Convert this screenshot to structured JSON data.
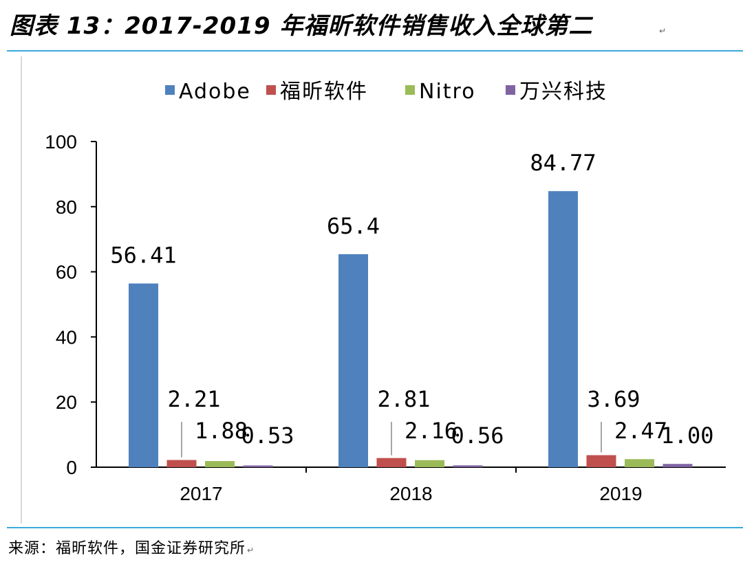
{
  "title": "图表 13：2017-2019 年福昕软件销售收入全球第二",
  "source": "来源：福昕软件，国金证券研究所",
  "chart_data": {
    "type": "bar",
    "categories": [
      "2017",
      "2018",
      "2019"
    ],
    "series": [
      {
        "name": "Adobe",
        "color": "#4f81bd",
        "values": [
          56.41,
          65.4,
          84.77
        ],
        "labels": [
          "56.41",
          "65.4",
          "84.77"
        ]
      },
      {
        "name": "福昕软件",
        "color": "#c0504d",
        "values": [
          2.21,
          2.81,
          3.69
        ],
        "labels": [
          "2.21",
          "2.81",
          "3.69"
        ]
      },
      {
        "name": "Nitro",
        "color": "#9bbb59",
        "values": [
          1.88,
          2.16,
          2.47
        ],
        "labels": [
          "1.88",
          "2.16",
          "2.47"
        ]
      },
      {
        "name": "万兴科技",
        "color": "#8064a2",
        "values": [
          0.53,
          0.56,
          1.0
        ],
        "labels": [
          "0.53",
          "0.56",
          "1.00"
        ]
      }
    ],
    "ylim": [
      0,
      100
    ],
    "yticks": [
      0,
      20,
      40,
      60,
      80,
      100
    ],
    "legend_position": "top",
    "grid": false
  }
}
